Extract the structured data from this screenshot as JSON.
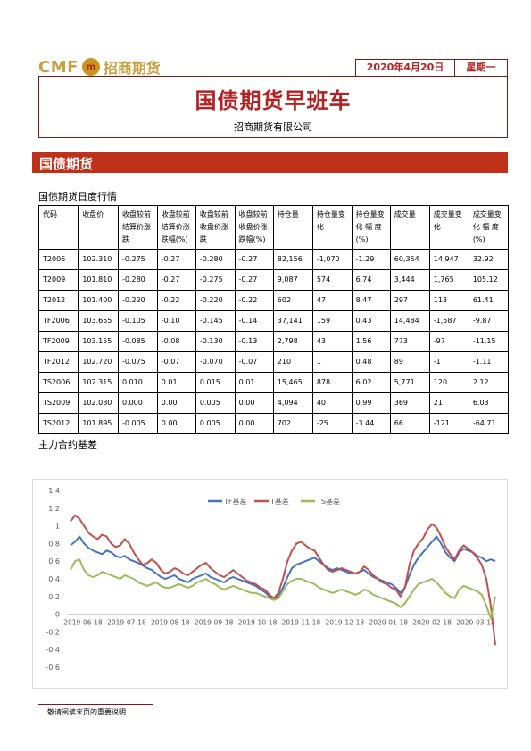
{
  "header": {
    "logo_cmf": "CMF",
    "logo_cn": "招商期货",
    "date": "2020年4月20日",
    "weekday": "星期一",
    "title": "国债期货早班车",
    "company": "招商期货有限公司"
  },
  "section": {
    "title": "国债期货"
  },
  "table": {
    "title": "国债期货日度行情",
    "headers": [
      "代码",
      "收盘价",
      "收盘较前结算价涨跌",
      "收盘较前结算价涨跌幅(%)",
      "收盘较前收盘价涨跌",
      "收盘较前收盘价涨跌幅(%)",
      "持仓量",
      "持仓量变化",
      "持仓量变化 幅 度(%)",
      "成交量",
      "成交量变化",
      "成交量变化 幅 度(%)"
    ],
    "rows": [
      [
        "T2006",
        "102.310",
        "-0.275",
        "-0.27",
        "-0.280",
        "-0.27",
        "82,156",
        "-1,070",
        "-1.29",
        "60,354",
        "14,947",
        "32.92"
      ],
      [
        "T2009",
        "101.810",
        "-0.280",
        "-0.27",
        "-0.275",
        "-0.27",
        "9,087",
        "574",
        "6.74",
        "3,444",
        "1,765",
        "105.12"
      ],
      [
        "T2012",
        "101.400",
        "-0.220",
        "-0.22",
        "-0.220",
        "-0.22",
        "602",
        "47",
        "8.47",
        "297",
        "113",
        "61.41"
      ],
      [
        "TF2006",
        "103.655",
        "-0.105",
        "-0.10",
        "-0.145",
        "-0.14",
        "37,141",
        "159",
        "0.43",
        "14,484",
        "-1,587",
        "-9.87"
      ],
      [
        "TF2009",
        "103.155",
        "-0.085",
        "-0.08",
        "-0.130",
        "-0.13",
        "2,798",
        "43",
        "1.56",
        "773",
        "-97",
        "-11.15"
      ],
      [
        "TF2012",
        "102.720",
        "-0.075",
        "-0.07",
        "-0.070",
        "-0.07",
        "210",
        "1",
        "0.48",
        "89",
        "-1",
        "-1.11"
      ],
      [
        "TS2006",
        "102.315",
        "0.010",
        "0.01",
        "0.015",
        "0.01",
        "15,465",
        "878",
        "6.02",
        "5,771",
        "120",
        "2.12"
      ],
      [
        "TS2009",
        "102.080",
        "0.000",
        "0.00",
        "0.005",
        "0.00",
        "4,094",
        "40",
        "0.99",
        "369",
        "21",
        "6.03"
      ],
      [
        "TS2012",
        "101.895",
        "-0.005",
        "0.00",
        "0.005",
        "0.00",
        "702",
        "-25",
        "-3.44",
        "66",
        "-121",
        "-64.71"
      ]
    ]
  },
  "chart_title": "主力合约基差",
  "chart_data": {
    "type": "line",
    "ylim": [
      -0.6,
      1.4
    ],
    "yticks": [
      "1.4",
      "1.2",
      "1",
      "0.8",
      "0.6",
      "0.4",
      "0.2",
      "0",
      "-0.2",
      "-0.4",
      "-0.6"
    ],
    "ytick_values": [
      1.4,
      1.2,
      1,
      0.8,
      0.6,
      0.4,
      0.2,
      0,
      -0.2,
      -0.4,
      -0.6
    ],
    "xticks": [
      "2019-06-18",
      "2019-07-18",
      "2019-08-18",
      "2019-09-18",
      "2019-10-18",
      "2019-11-18",
      "2019-12-18",
      "2020-01-18",
      "2020-02-18",
      "2020-03-18"
    ],
    "legend_position": "top-center",
    "series": [
      {
        "name": "TF基差",
        "color": "#4472c4",
        "values": [
          0.78,
          0.82,
          0.88,
          0.8,
          0.75,
          0.72,
          0.7,
          0.68,
          0.72,
          0.7,
          0.66,
          0.64,
          0.66,
          0.62,
          0.6,
          0.58,
          0.55,
          0.52,
          0.5,
          0.46,
          0.42,
          0.4,
          0.42,
          0.44,
          0.4,
          0.38,
          0.36,
          0.4,
          0.42,
          0.44,
          0.46,
          0.42,
          0.4,
          0.38,
          0.36,
          0.4,
          0.42,
          0.4,
          0.38,
          0.36,
          0.34,
          0.32,
          0.28,
          0.25,
          0.2,
          0.18,
          0.2,
          0.3,
          0.42,
          0.52,
          0.56,
          0.58,
          0.6,
          0.62,
          0.64,
          0.6,
          0.56,
          0.52,
          0.5,
          0.52,
          0.5,
          0.48,
          0.46,
          0.46,
          0.48,
          0.5,
          0.46,
          0.42,
          0.4,
          0.38,
          0.36,
          0.34,
          0.3,
          0.24,
          0.3,
          0.44,
          0.56,
          0.64,
          0.7,
          0.76,
          0.82,
          0.88,
          0.8,
          0.7,
          0.64,
          0.6,
          0.7,
          0.74,
          0.72,
          0.7,
          0.66,
          0.64,
          0.6,
          0.62,
          0.6
        ]
      },
      {
        "name": "T基差",
        "color": "#c0504d",
        "values": [
          1.05,
          1.12,
          1.08,
          1.0,
          0.92,
          0.88,
          0.85,
          0.9,
          0.88,
          0.8,
          0.76,
          0.78,
          0.85,
          0.8,
          0.7,
          0.62,
          0.56,
          0.58,
          0.62,
          0.58,
          0.5,
          0.46,
          0.48,
          0.52,
          0.5,
          0.46,
          0.44,
          0.48,
          0.52,
          0.56,
          0.58,
          0.52,
          0.48,
          0.44,
          0.42,
          0.46,
          0.5,
          0.46,
          0.42,
          0.38,
          0.36,
          0.34,
          0.3,
          0.28,
          0.22,
          0.18,
          0.24,
          0.4,
          0.6,
          0.72,
          0.8,
          0.82,
          0.78,
          0.74,
          0.72,
          0.64,
          0.56,
          0.5,
          0.48,
          0.5,
          0.52,
          0.5,
          0.48,
          0.46,
          0.48,
          0.54,
          0.5,
          0.44,
          0.4,
          0.36,
          0.34,
          0.3,
          0.28,
          0.2,
          0.3,
          0.56,
          0.72,
          0.8,
          0.86,
          0.96,
          1.02,
          0.98,
          0.88,
          0.76,
          0.68,
          0.62,
          0.72,
          0.78,
          0.74,
          0.7,
          0.64,
          0.56,
          0.4,
          0.1,
          -0.35
        ]
      },
      {
        "name": "TS基差",
        "color": "#9bbb59",
        "values": [
          0.5,
          0.6,
          0.62,
          0.5,
          0.44,
          0.42,
          0.44,
          0.48,
          0.46,
          0.44,
          0.42,
          0.4,
          0.44,
          0.42,
          0.4,
          0.36,
          0.34,
          0.32,
          0.34,
          0.36,
          0.32,
          0.3,
          0.3,
          0.32,
          0.34,
          0.32,
          0.3,
          0.32,
          0.36,
          0.38,
          0.4,
          0.36,
          0.34,
          0.3,
          0.28,
          0.3,
          0.32,
          0.3,
          0.28,
          0.26,
          0.24,
          0.24,
          0.22,
          0.2,
          0.18,
          0.16,
          0.18,
          0.26,
          0.34,
          0.38,
          0.4,
          0.4,
          0.38,
          0.36,
          0.34,
          0.3,
          0.28,
          0.26,
          0.24,
          0.26,
          0.28,
          0.26,
          0.24,
          0.22,
          0.24,
          0.28,
          0.26,
          0.22,
          0.2,
          0.18,
          0.16,
          0.14,
          0.12,
          0.08,
          0.12,
          0.2,
          0.28,
          0.34,
          0.36,
          0.38,
          0.4,
          0.36,
          0.3,
          0.24,
          0.2,
          0.18,
          0.28,
          0.32,
          0.3,
          0.28,
          0.26,
          0.22,
          0.1,
          -0.05,
          0.2
        ]
      }
    ]
  },
  "footer": {
    "text": "敬请阅读末页的重要说明"
  }
}
